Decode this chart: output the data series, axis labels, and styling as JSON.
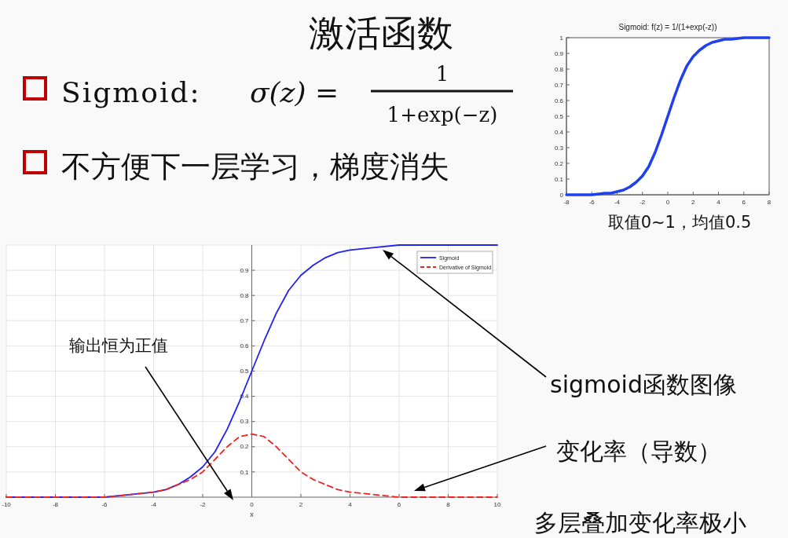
{
  "chart_data": [
    {
      "type": "other",
      "title": "激活函数",
      "annotations": [
        "Sigmoid:",
        "σ(z) =",
        "1",
        "1+exp(−z)",
        "不方便下一层学习，梯度消失"
      ]
    },
    {
      "type": "line",
      "title": "Sigmoid:   f(z) = 1/(1+exp(-z))",
      "xlim": [
        -8,
        8
      ],
      "xticks": [
        -8,
        -6,
        -4,
        -2,
        0,
        2,
        4,
        6,
        8
      ],
      "ylim": [
        0,
        1
      ],
      "yticks": [
        0,
        0.1,
        0.2,
        0.3,
        0.4,
        0.5,
        0.6,
        0.7,
        0.8,
        0.9,
        1
      ],
      "grid": false,
      "legend": false,
      "x": [
        -8,
        -7,
        -6,
        -5,
        -4.5,
        -4,
        -3.5,
        -3,
        -2.5,
        -2,
        -1.5,
        -1,
        -0.5,
        0,
        0.5,
        1,
        1.5,
        2,
        2.5,
        3,
        3.5,
        4,
        4.5,
        5,
        6,
        7,
        8
      ],
      "series": [
        {
          "color": "#1f3ff0",
          "line_style": "solid",
          "values": [
            0.0,
            0.0,
            0.0,
            0.01,
            0.01,
            0.02,
            0.03,
            0.05,
            0.08,
            0.12,
            0.18,
            0.27,
            0.38,
            0.5,
            0.62,
            0.73,
            0.82,
            0.88,
            0.92,
            0.95,
            0.97,
            0.98,
            0.99,
            0.99,
            1.0,
            1.0,
            1.0
          ]
        }
      ],
      "annotations": [
        "取值0~1，均值0.5"
      ]
    },
    {
      "type": "line",
      "xlabel": "x",
      "xlim": [
        -10,
        10
      ],
      "xticks": [
        -10,
        -8,
        -6,
        -4,
        -2,
        0,
        2,
        4,
        6,
        8,
        10
      ],
      "ylim": [
        0,
        1
      ],
      "yticks": [
        0.1,
        0.2,
        0.3,
        0.4,
        0.5,
        0.6,
        0.7,
        0.8,
        0.9
      ],
      "grid": true,
      "legend": "top right",
      "x": [
        -10,
        -8,
        -6,
        -5,
        -4,
        -3.5,
        -3,
        -2.5,
        -2,
        -1.5,
        -1,
        -0.5,
        0,
        0.5,
        1,
        1.5,
        2,
        2.5,
        3,
        3.5,
        4,
        5,
        6,
        8,
        10
      ],
      "series": [
        {
          "name": "Sigmoid",
          "color": "#2121f5",
          "line_style": "solid",
          "values": [
            0.0,
            0.0,
            0.0,
            0.01,
            0.02,
            0.03,
            0.05,
            0.08,
            0.12,
            0.18,
            0.27,
            0.38,
            0.5,
            0.62,
            0.73,
            0.82,
            0.88,
            0.92,
            0.95,
            0.97,
            0.98,
            0.99,
            1.0,
            1.0,
            1.0
          ]
        },
        {
          "name": "Derivative of Sigmoid",
          "color": "#f52121",
          "line_style": "dashed",
          "values": [
            0.0,
            0.0,
            0.0,
            0.01,
            0.02,
            0.03,
            0.05,
            0.07,
            0.1,
            0.15,
            0.2,
            0.24,
            0.25,
            0.24,
            0.2,
            0.15,
            0.1,
            0.07,
            0.05,
            0.03,
            0.02,
            0.01,
            0.0,
            0.0,
            0.0
          ]
        }
      ],
      "annotations": [
        "输出恒为正值",
        "sigmoid函数图像",
        "变化率（导数）",
        "多层叠加变化率极小"
      ]
    }
  ]
}
